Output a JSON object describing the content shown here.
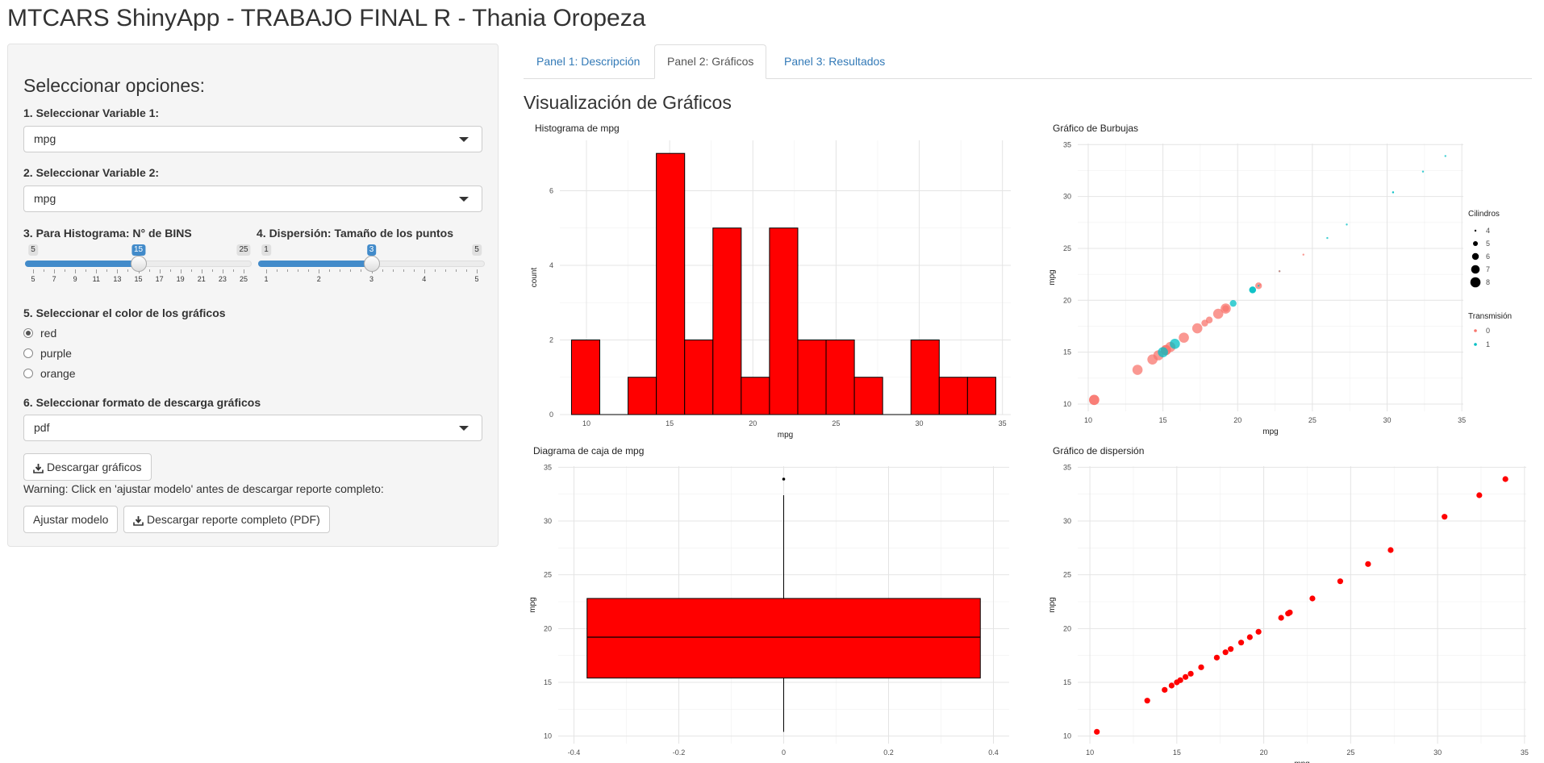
{
  "app_title": "MTCARS ShinyApp - TRABAJO FINAL R - Thania Oropeza",
  "sidebar": {
    "title": "Seleccionar opciones:",
    "var1": {
      "label": "1. Seleccionar Variable 1:",
      "value": "mpg"
    },
    "var2": {
      "label": "2. Seleccionar Variable 2:",
      "value": "mpg"
    },
    "bins": {
      "label": "3. Para Histograma: N° de BINS",
      "min": 5,
      "max": 25,
      "value": 15,
      "ticks": [
        5,
        7,
        9,
        11,
        13,
        15,
        17,
        19,
        21,
        23,
        25
      ]
    },
    "pointsize": {
      "label": "4. Dispersión: Tamaño de los puntos",
      "min": 1,
      "max": 5,
      "value": 3,
      "ticks": [
        1,
        2,
        3,
        4,
        5
      ]
    },
    "color": {
      "label": "5. Seleccionar el color de los gráficos",
      "options": [
        "red",
        "purple",
        "orange"
      ],
      "selected": "red"
    },
    "format": {
      "label": "6. Seleccionar formato de descarga gráficos",
      "value": "pdf"
    },
    "download_graphs_label": "Descargar gráficos",
    "warning": "Warning: Click en 'ajustar modelo' antes de descargar reporte completo:",
    "fit_model_label": "Ajustar modelo",
    "download_report_label": "Descargar reporte completo (PDF)"
  },
  "tabs": [
    {
      "label": "Panel 1: Descripción",
      "active": false
    },
    {
      "label": "Panel 2: Gráficos",
      "active": true
    },
    {
      "label": "Panel 3: Resultados",
      "active": false
    }
  ],
  "section_title": "Visualización de Gráficos",
  "colors": {
    "fill": "#ff0000",
    "trans0": "#f8766d",
    "trans1": "#00bfc4",
    "accent": "#428bca",
    "link": "#337ab7"
  },
  "icons": {
    "download": "download-icon",
    "caret": "caret-down-icon"
  },
  "chart_data": [
    {
      "id": "hist",
      "type": "bar",
      "title": "Histograma de mpg",
      "xlabel": "mpg",
      "ylabel": "count",
      "xlim": [
        8.4,
        35.5
      ],
      "ylim": [
        0,
        7.35
      ],
      "xticks": [
        10,
        15,
        20,
        25,
        30,
        35
      ],
      "yticks": [
        0,
        2,
        4,
        6
      ],
      "bin_edges": [
        9.1,
        10.8,
        12.5,
        14.2,
        15.9,
        17.6,
        19.3,
        21.0,
        22.7,
        24.4,
        26.1,
        27.8,
        29.5,
        31.2,
        32.9,
        34.6
      ],
      "values": [
        2,
        0,
        1,
        7,
        2,
        5,
        1,
        5,
        2,
        2,
        1,
        0,
        2,
        1,
        1
      ]
    },
    {
      "id": "bubble",
      "type": "scatter",
      "title": "Gráfico de Burbujas",
      "xlabel": "mpg",
      "ylabel": "mpg",
      "xlim": [
        9.3,
        35.1
      ],
      "ylim": [
        9.3,
        35.1
      ],
      "xticks": [
        10,
        15,
        20,
        25,
        30,
        35
      ],
      "yticks": [
        10,
        15,
        20,
        25,
        30,
        35
      ],
      "legend_size_title": "Cilindros",
      "legend_size_items": [
        "4",
        "5",
        "6",
        "7",
        "8"
      ],
      "legend_color_title": "Transmisión",
      "legend_color_items": [
        "0",
        "1"
      ],
      "points": [
        {
          "mpg": 21.0,
          "cyl": 6,
          "am": 1
        },
        {
          "mpg": 21.0,
          "cyl": 6,
          "am": 1
        },
        {
          "mpg": 22.8,
          "cyl": 4,
          "am": 1
        },
        {
          "mpg": 21.4,
          "cyl": 6,
          "am": 0
        },
        {
          "mpg": 18.7,
          "cyl": 8,
          "am": 0
        },
        {
          "mpg": 18.1,
          "cyl": 6,
          "am": 0
        },
        {
          "mpg": 14.3,
          "cyl": 8,
          "am": 0
        },
        {
          "mpg": 24.4,
          "cyl": 4,
          "am": 0
        },
        {
          "mpg": 22.8,
          "cyl": 4,
          "am": 0
        },
        {
          "mpg": 19.2,
          "cyl": 6,
          "am": 0
        },
        {
          "mpg": 17.8,
          "cyl": 6,
          "am": 0
        },
        {
          "mpg": 16.4,
          "cyl": 8,
          "am": 0
        },
        {
          "mpg": 17.3,
          "cyl": 8,
          "am": 0
        },
        {
          "mpg": 15.2,
          "cyl": 8,
          "am": 0
        },
        {
          "mpg": 10.4,
          "cyl": 8,
          "am": 0
        },
        {
          "mpg": 10.4,
          "cyl": 8,
          "am": 0
        },
        {
          "mpg": 14.7,
          "cyl": 8,
          "am": 0
        },
        {
          "mpg": 32.4,
          "cyl": 4,
          "am": 1
        },
        {
          "mpg": 30.4,
          "cyl": 4,
          "am": 1
        },
        {
          "mpg": 33.9,
          "cyl": 4,
          "am": 1
        },
        {
          "mpg": 21.5,
          "cyl": 4,
          "am": 0
        },
        {
          "mpg": 15.5,
          "cyl": 8,
          "am": 0
        },
        {
          "mpg": 15.2,
          "cyl": 8,
          "am": 0
        },
        {
          "mpg": 13.3,
          "cyl": 8,
          "am": 0
        },
        {
          "mpg": 19.2,
          "cyl": 8,
          "am": 0
        },
        {
          "mpg": 27.3,
          "cyl": 4,
          "am": 1
        },
        {
          "mpg": 26.0,
          "cyl": 4,
          "am": 1
        },
        {
          "mpg": 30.4,
          "cyl": 4,
          "am": 1
        },
        {
          "mpg": 15.8,
          "cyl": 8,
          "am": 1
        },
        {
          "mpg": 19.7,
          "cyl": 6,
          "am": 1
        },
        {
          "mpg": 15.0,
          "cyl": 8,
          "am": 1
        },
        {
          "mpg": 21.4,
          "cyl": 4,
          "am": 1
        }
      ]
    },
    {
      "id": "box",
      "type": "box",
      "title": "Diagrama de caja de mpg",
      "xlabel": "",
      "ylabel": "mpg",
      "xlim": [
        -0.43,
        0.43
      ],
      "ylim": [
        9.3,
        35.1
      ],
      "xticks": [
        -0.4,
        -0.2,
        0.0,
        0.2,
        0.4
      ],
      "yticks": [
        10,
        15,
        20,
        25,
        30,
        35
      ],
      "box": {
        "xmin": -0.375,
        "xmax": 0.375,
        "min": 10.4,
        "q1": 15.4,
        "median": 19.2,
        "q3": 22.8,
        "whisker_max": 32.4,
        "outliers": [
          33.9
        ]
      }
    },
    {
      "id": "scatter",
      "type": "scatter",
      "title": "Gráfico de dispersión",
      "xlabel": "mpg",
      "ylabel": "mpg",
      "xlim": [
        9.3,
        35.1
      ],
      "ylim": [
        9.3,
        35.1
      ],
      "xticks": [
        10,
        15,
        20,
        25,
        30,
        35
      ],
      "yticks": [
        10,
        15,
        20,
        25,
        30,
        35
      ],
      "x": [
        10.4,
        13.3,
        14.3,
        14.7,
        15.0,
        15.2,
        15.5,
        15.8,
        16.4,
        17.3,
        17.8,
        18.1,
        18.7,
        19.2,
        19.7,
        21.0,
        21.4,
        21.5,
        22.8,
        24.4,
        26.0,
        27.3,
        30.4,
        32.4,
        33.9
      ]
    }
  ]
}
